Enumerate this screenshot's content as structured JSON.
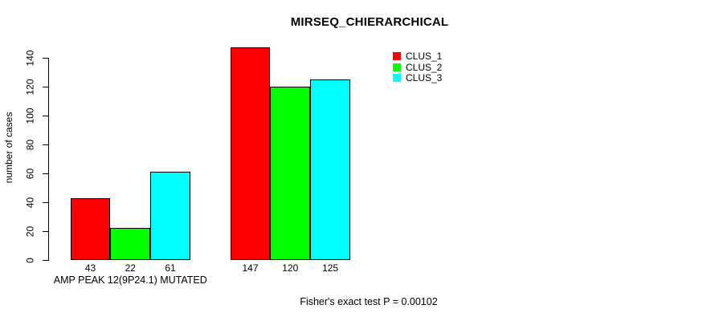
{
  "chart_data": {
    "type": "bar",
    "title": "MIRSEQ_CHIERARCHICAL",
    "ylabel": "number of cases",
    "xlabel": "",
    "ylim": [
      0,
      140
    ],
    "yticks": [
      0,
      20,
      40,
      60,
      80,
      100,
      120,
      140
    ],
    "grid": false,
    "categories": [
      "AMP PEAK 12(9P24.1) MUTATED",
      ""
    ],
    "series": [
      {
        "name": "CLUS_1",
        "color": "#ff0000",
        "values": [
          43,
          147
        ]
      },
      {
        "name": "CLUS_2",
        "color": "#00ff00",
        "values": [
          22,
          120
        ]
      },
      {
        "name": "CLUS_3",
        "color": "#00ffff",
        "values": [
          61,
          125
        ]
      }
    ],
    "bar_value_labels": [
      [
        43,
        22,
        61
      ],
      [
        147,
        120,
        125
      ]
    ],
    "legend_position": "top-right",
    "legend_items": [
      "CLUS_1",
      "CLUS_2",
      "CLUS_3"
    ],
    "annotation": "Fisher's exact test P = 0.00102",
    "colors": {
      "bar_border": "#000000",
      "axis": "#000000",
      "text": "#000000",
      "background": "#ffffff"
    }
  }
}
